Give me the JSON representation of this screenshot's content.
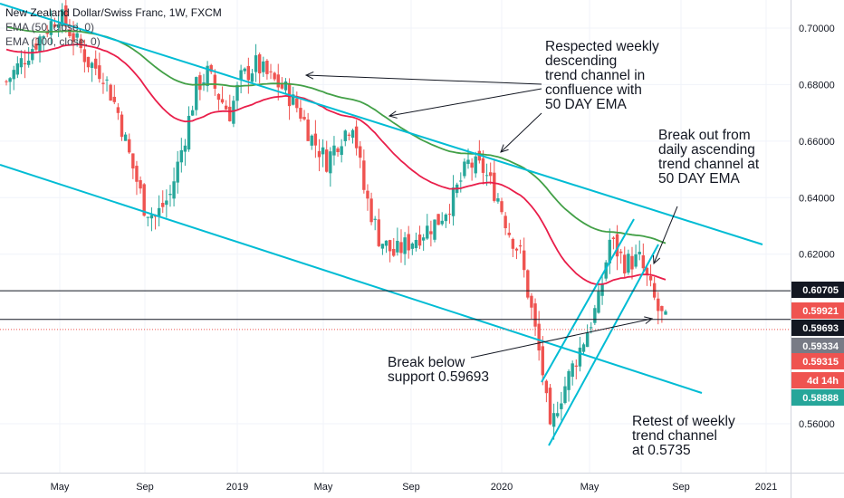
{
  "chart_data": {
    "type": "candlestick",
    "title": "New Zealand Dollar/Swiss Franc, 1W, FXCM",
    "indicators": [
      {
        "name": "EMA (50, close, 0)",
        "color": "#e91e4a"
      },
      {
        "name": "EMA (100, close, 0)",
        "color": "#43a047"
      }
    ],
    "y_ticks": [
      "0.70000",
      "0.68000",
      "0.66000",
      "0.64000",
      "0.62000",
      "0.56000"
    ],
    "y_tick_values": [
      0.7,
      0.68,
      0.66,
      0.64,
      0.62,
      0.56
    ],
    "ylim": [
      0.547,
      0.7095
    ],
    "x_ticks": [
      "May",
      "Sep",
      "2019",
      "May",
      "Sep",
      "2020",
      "May",
      "Sep",
      "2021"
    ],
    "horizontal_lines": [
      {
        "value": 0.60705,
        "color": "#131722"
      },
      {
        "value": 0.59693,
        "color": "#131722"
      }
    ],
    "price_badges": [
      {
        "label": "0.60705",
        "value": 0.60705,
        "bg": "#131722",
        "fg": "#ffffff"
      },
      {
        "label": "0.59921",
        "value": 0.59921,
        "bg": "#ef5350",
        "fg": "#ffffff"
      },
      {
        "label": "0.59693",
        "value": 0.59693,
        "bg": "#131722",
        "fg": "#ffffff"
      },
      {
        "label": "0.59334",
        "value": 0.59334,
        "bg": "#787b86",
        "fg": "#ffffff"
      },
      {
        "label": "0.59315",
        "value": 0.59315,
        "bg": "#ef5350",
        "fg": "#ffffff"
      },
      {
        "label": "4d 14h",
        "value": 0.588,
        "bg": "#ef5350",
        "fg": "#ffffff"
      },
      {
        "label": "0.58888",
        "value": 0.58888,
        "bg": "#26a69a",
        "fg": "#ffffff"
      }
    ],
    "annotations": [
      {
        "text": "Respected weekly\ndescending\ntrend channel in\nconfluence with\n50 DAY EMA"
      },
      {
        "text": "Break out from\ndaily ascending\ntrend channel at\n50 DAY EMA"
      },
      {
        "text": "Break below\nsupport 0.59693"
      },
      {
        "text": "Retest of weekly\ntrend channel\nat 0.5735"
      }
    ],
    "colors": {
      "up": "#26a69a",
      "down": "#ef5350",
      "channel": "#00bcd4",
      "arrow": "#131722"
    }
  }
}
